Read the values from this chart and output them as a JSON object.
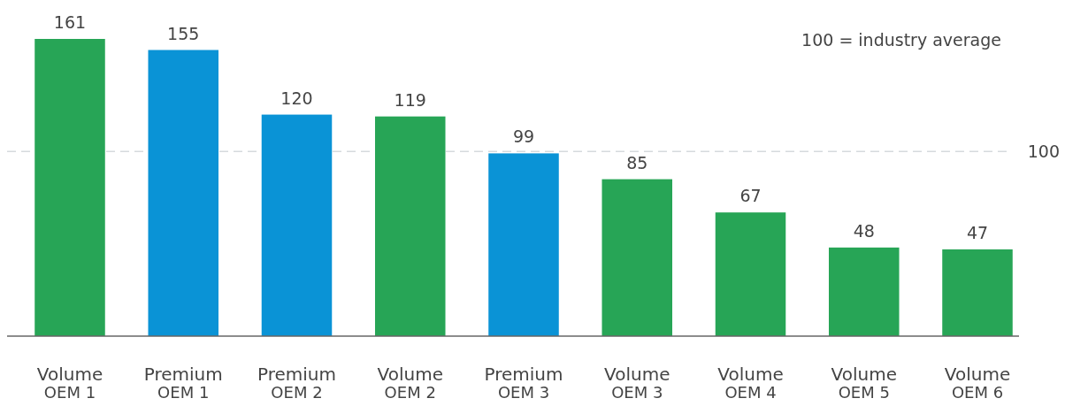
{
  "chart_data": {
    "type": "bar",
    "categories": [
      "Volume OEM 1",
      "Premium OEM 1",
      "Premium OEM 2",
      "Volume OEM 2",
      "Premium OEM 3",
      "Volume OEM 3",
      "Volume OEM 4",
      "Volume OEM 5",
      "Volume OEM 6"
    ],
    "values": [
      161,
      155,
      120,
      119,
      99,
      85,
      67,
      48,
      47
    ],
    "colors": [
      "#27a556",
      "#0a93d6",
      "#0a93d6",
      "#27a556",
      "#0a93d6",
      "#27a556",
      "#27a556",
      "#27a556",
      "#27a556"
    ],
    "data_labels": true,
    "ref_lines": [
      {
        "axis": "y",
        "value": 100,
        "label": "100",
        "color": "#d6dadd",
        "line_style": "dashed"
      }
    ],
    "annotations": [
      "100 = industry average"
    ]
  }
}
